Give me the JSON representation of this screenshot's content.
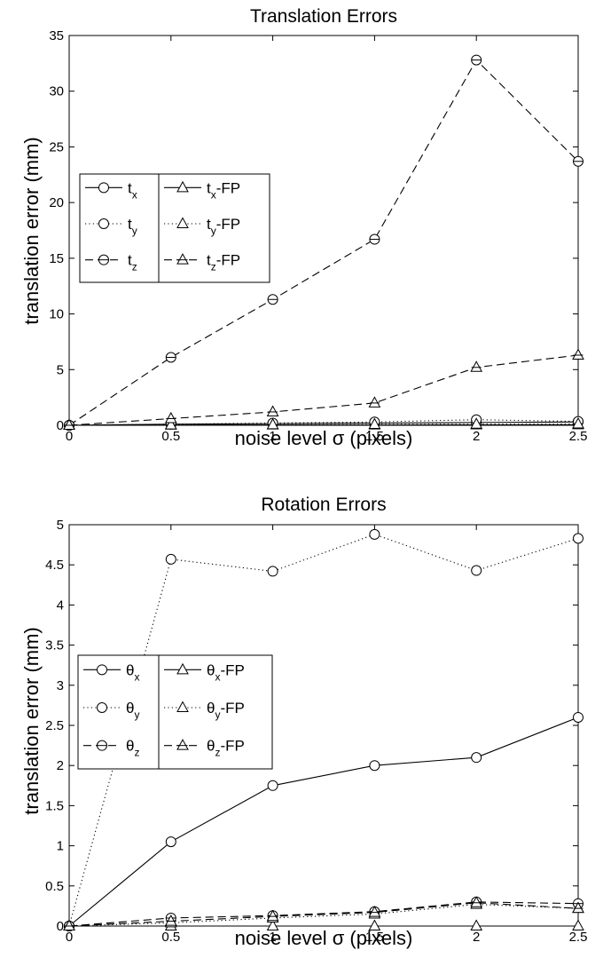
{
  "chart_data": [
    {
      "type": "line",
      "title": "Translation Errors",
      "xlabel": "noise level σ (pixels)",
      "ylabel": "translation error (mm)",
      "xlim": [
        0,
        2.5
      ],
      "ylim": [
        0,
        35
      ],
      "xticks": [
        "0",
        "0.5",
        "1",
        "1.5",
        "2",
        "2.5"
      ],
      "yticks": [
        "0",
        "5",
        "10",
        "15",
        "20",
        "25",
        "30",
        "35"
      ],
      "grid": false,
      "legend_position": "center-left",
      "x": [
        0,
        0.5,
        1,
        1.5,
        2,
        2.5
      ],
      "series": [
        {
          "name": "t",
          "sub": "x",
          "suffix": "",
          "marker": "circle",
          "dash": "solid",
          "values": [
            0,
            0.1,
            0.15,
            0.2,
            0.25,
            0.3
          ]
        },
        {
          "name": "t",
          "sub": "y",
          "suffix": "",
          "marker": "circle",
          "dash": "dotted",
          "values": [
            0,
            0.1,
            0.2,
            0.3,
            0.5,
            0.35
          ]
        },
        {
          "name": "t",
          "sub": "z",
          "suffix": "",
          "marker": "circle-bar",
          "dash": "dashed",
          "values": [
            0,
            6.1,
            11.3,
            16.7,
            32.8,
            23.7
          ]
        },
        {
          "name": "t",
          "sub": "x",
          "suffix": "-FP",
          "marker": "triangle",
          "dash": "solid",
          "values": [
            0,
            0.02,
            0.03,
            0.03,
            0.04,
            0.05
          ]
        },
        {
          "name": "t",
          "sub": "y",
          "suffix": "-FP",
          "marker": "triangle",
          "dash": "dotted",
          "values": [
            0,
            0.03,
            0.05,
            0.08,
            0.1,
            0.12
          ]
        },
        {
          "name": "t",
          "sub": "z",
          "suffix": "-FP",
          "marker": "triangle-bar",
          "dash": "dashed",
          "values": [
            0,
            0.6,
            1.2,
            2.0,
            5.2,
            6.3
          ]
        }
      ]
    },
    {
      "type": "line",
      "title": "Rotation Errors",
      "xlabel": "noise level σ (pixels)",
      "ylabel": "translation error (mm)",
      "xlim": [
        0,
        2.5
      ],
      "ylim": [
        0,
        5
      ],
      "xticks": [
        "0",
        "0.5",
        "1",
        "1.5",
        "2",
        "2.5"
      ],
      "yticks": [
        "0",
        "0.5",
        "1",
        "1.5",
        "2",
        "2.5",
        "3",
        "3.5",
        "4",
        "4.5",
        "5"
      ],
      "grid": false,
      "legend_position": "center-left",
      "x": [
        0,
        0.5,
        1,
        1.5,
        2,
        2.5
      ],
      "series": [
        {
          "name": "θ",
          "sub": "x",
          "suffix": "",
          "marker": "circle",
          "dash": "solid",
          "values": [
            0,
            1.05,
            1.75,
            2.0,
            2.1,
            2.6
          ]
        },
        {
          "name": "θ",
          "sub": "y",
          "suffix": "",
          "marker": "circle",
          "dash": "dotted",
          "values": [
            0,
            4.57,
            4.42,
            4.88,
            4.43,
            4.83
          ]
        },
        {
          "name": "θ",
          "sub": "z",
          "suffix": "",
          "marker": "circle-bar",
          "dash": "dashed",
          "values": [
            0,
            0.1,
            0.13,
            0.18,
            0.3,
            0.28
          ]
        },
        {
          "name": "θ",
          "sub": "x",
          "suffix": "-FP",
          "marker": "triangle",
          "dash": "solid",
          "values": [
            0,
            0,
            0,
            0,
            0,
            0
          ]
        },
        {
          "name": "θ",
          "sub": "y",
          "suffix": "-FP",
          "marker": "triangle",
          "dash": "dotted",
          "values": [
            0,
            0.04,
            0.1,
            0.15,
            0.27,
            0.22
          ]
        },
        {
          "name": "θ",
          "sub": "z",
          "suffix": "-FP",
          "marker": "triangle-bar",
          "dash": "dashed",
          "values": [
            0,
            0.06,
            0.12,
            0.17,
            0.29,
            0.22
          ]
        }
      ]
    }
  ]
}
